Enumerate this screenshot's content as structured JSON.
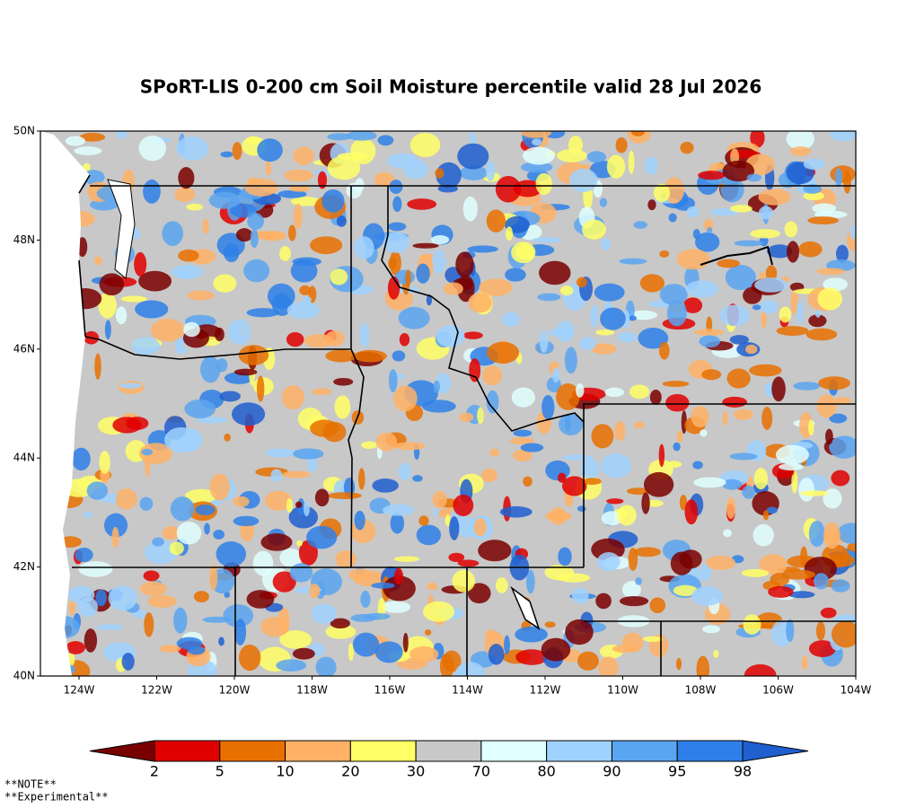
{
  "map": {
    "title": "SPoRT-LIS 0-200 cm Soil Moisture percentile valid 28 Jul 2026",
    "lat_labels": [
      "50N",
      "48N",
      "46N",
      "44N",
      "42N",
      "40N"
    ],
    "lon_labels": [
      "124W",
      "122W",
      "120W",
      "118W",
      "116W",
      "114W",
      "112W",
      "110W",
      "108W",
      "106W",
      "104W"
    ],
    "colorbar": {
      "labels": [
        2,
        5,
        10,
        20,
        30,
        70,
        80,
        90,
        95,
        98
      ],
      "colors": [
        "#7a0000",
        "#e00000",
        "#e87000",
        "#ffb266",
        "#ffff66",
        "#c8c8c8",
        "#e0ffff",
        "#a0d2ff",
        "#5aa5f0",
        "#2e80e8",
        "#1f5fd0"
      ]
    },
    "notes": [
      "**NOTE**",
      "**Experimental**"
    ]
  }
}
